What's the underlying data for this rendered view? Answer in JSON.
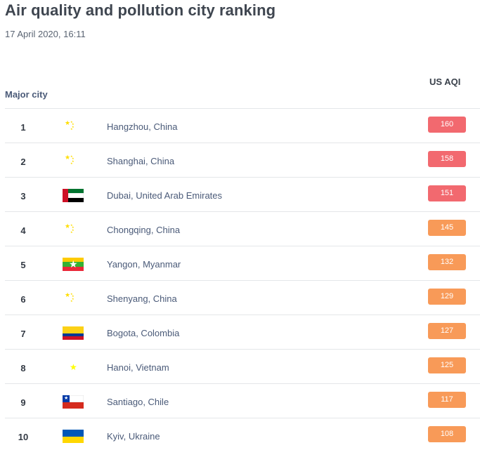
{
  "header": {
    "title": "Air quality and pollution city ranking",
    "timestamp": "17 April 2020, 16:11"
  },
  "table": {
    "col_city": "Major city",
    "col_aqi": "US AQI",
    "rows": [
      {
        "rank": "1",
        "city": "Hangzhou, China",
        "aqi": "160",
        "flag": "china-flag-icon",
        "level": "unhealthy"
      },
      {
        "rank": "2",
        "city": "Shanghai, China",
        "aqi": "158",
        "flag": "china-flag-icon",
        "level": "unhealthy"
      },
      {
        "rank": "3",
        "city": "Dubai, United Arab Emirates",
        "aqi": "151",
        "flag": "uae-flag-icon",
        "level": "unhealthy"
      },
      {
        "rank": "4",
        "city": "Chongqing, China",
        "aqi": "145",
        "flag": "china-flag-icon",
        "level": "unhealthy-sensitive"
      },
      {
        "rank": "5",
        "city": "Yangon, Myanmar",
        "aqi": "132",
        "flag": "myanmar-flag-icon",
        "level": "unhealthy-sensitive"
      },
      {
        "rank": "6",
        "city": "Shenyang, China",
        "aqi": "129",
        "flag": "china-flag-icon",
        "level": "unhealthy-sensitive"
      },
      {
        "rank": "7",
        "city": "Bogota, Colombia",
        "aqi": "127",
        "flag": "colombia-flag-icon",
        "level": "unhealthy-sensitive"
      },
      {
        "rank": "8",
        "city": "Hanoi, Vietnam",
        "aqi": "125",
        "flag": "vietnam-flag-icon",
        "level": "unhealthy-sensitive"
      },
      {
        "rank": "9",
        "city": "Santiago, Chile",
        "aqi": "117",
        "flag": "chile-flag-icon",
        "level": "unhealthy-sensitive"
      },
      {
        "rank": "10",
        "city": "Kyiv, Ukraine",
        "aqi": "108",
        "flag": "ukraine-flag-icon",
        "level": "unhealthy-sensitive"
      }
    ]
  },
  "colors": {
    "unhealthy": "#f2696f",
    "unhealthy_sensitive": "#f89a58"
  }
}
